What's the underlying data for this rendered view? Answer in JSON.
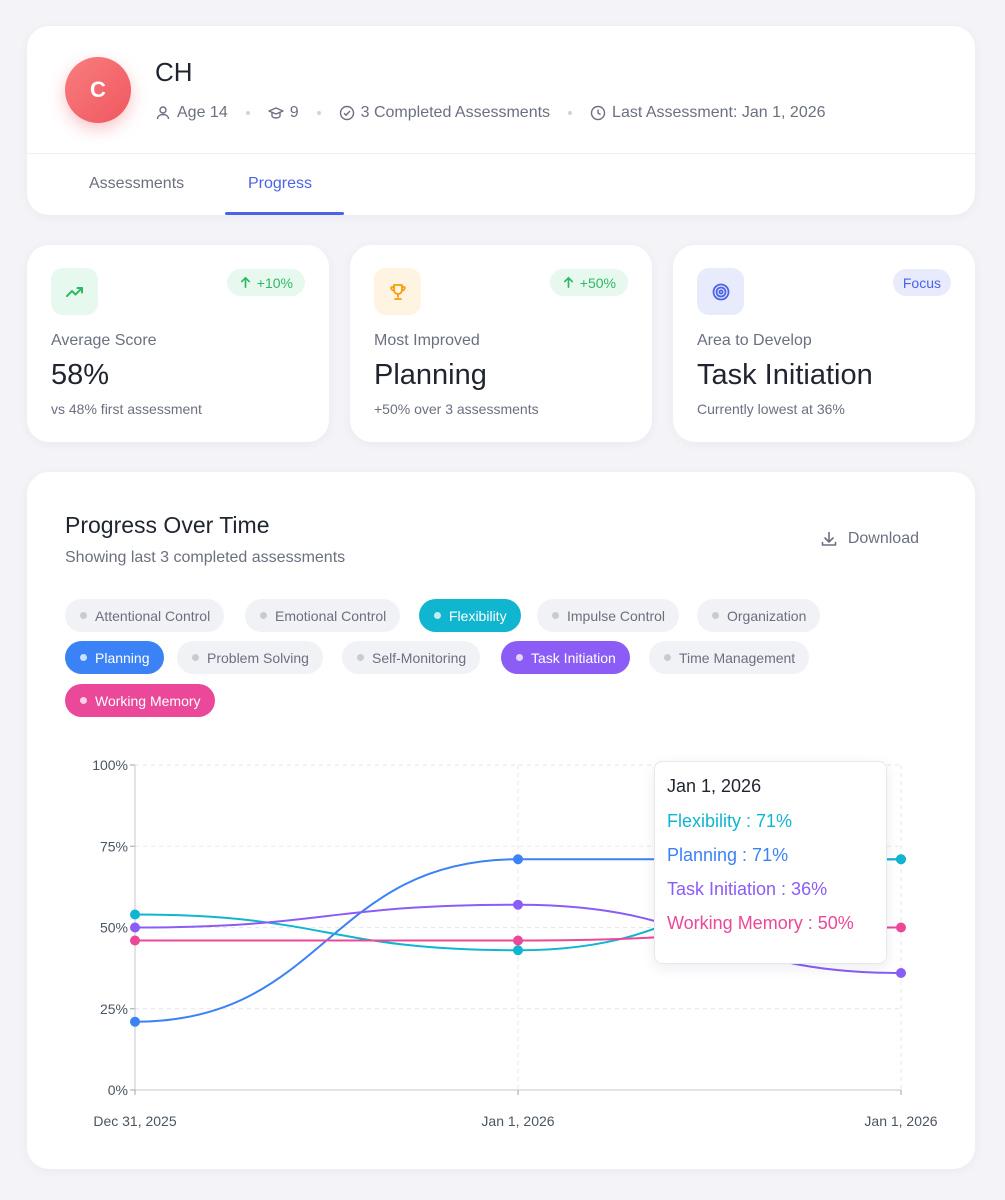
{
  "profile": {
    "initial": "C",
    "name": "CH",
    "age": "Age 14",
    "grade": "9",
    "completed": "3 Completed Assessments",
    "last_assessment": "Last Assessment: Jan 1, 2026"
  },
  "tabs": [
    {
      "label": "Assessments",
      "active": false
    },
    {
      "label": "Progress",
      "active": true
    }
  ],
  "stats": [
    {
      "icon": "trending-up-icon",
      "badge": "+10%",
      "label": "Average Score",
      "value": "58%",
      "sub": "vs 48% first assessment"
    },
    {
      "icon": "trophy-icon",
      "badge": "+50%",
      "label": "Most Improved",
      "value": "Planning",
      "sub": "+50% over 3 assessments"
    },
    {
      "icon": "target-icon",
      "badge": "Focus",
      "label": "Area to Develop",
      "value": "Task Initiation",
      "sub": "Currently lowest at 36%"
    }
  ],
  "progress": {
    "title": "Progress Over Time",
    "subtitle": "Showing last 3 completed assessments",
    "download_label": "Download"
  },
  "chips": [
    {
      "label": "Attentional Control",
      "active": false,
      "color": "#c8cbd3"
    },
    {
      "label": "Emotional Control",
      "active": false,
      "color": "#c8cbd3"
    },
    {
      "label": "Flexibility",
      "active": true,
      "color": "#10b5cf"
    },
    {
      "label": "Impulse Control",
      "active": false,
      "color": "#c8cbd3"
    },
    {
      "label": "Organization",
      "active": false,
      "color": "#c8cbd3"
    },
    {
      "label": "Planning",
      "active": true,
      "color": "#3b82f6"
    },
    {
      "label": "Problem Solving",
      "active": false,
      "color": "#c8cbd3"
    },
    {
      "label": "Self-Monitoring",
      "active": false,
      "color": "#c8cbd3"
    },
    {
      "label": "Task Initiation",
      "active": true,
      "color": "#8b5cf6"
    },
    {
      "label": "Time Management",
      "active": false,
      "color": "#c8cbd3"
    },
    {
      "label": "Working Memory",
      "active": true,
      "color": "#ec4899"
    }
  ],
  "chart_data": {
    "type": "line",
    "title": "",
    "x": [
      "Dec 31, 2025",
      "Jan 1, 2026",
      "Jan 1, 2026"
    ],
    "ylim": [
      0,
      100
    ],
    "y_ticks": [
      "0%",
      "25%",
      "50%",
      "75%",
      "100%"
    ],
    "grid": true,
    "series": [
      {
        "name": "Planning",
        "color": "#3b82f6",
        "values": [
          21,
          71,
          71
        ]
      },
      {
        "name": "Flexibility",
        "color": "#10b5cf",
        "values": [
          54,
          43,
          71
        ]
      },
      {
        "name": "Task Initiation",
        "color": "#8b5cf6",
        "values": [
          50,
          57,
          36
        ]
      },
      {
        "name": "Working Memory",
        "color": "#ec4899",
        "values": [
          46,
          46,
          50
        ]
      }
    ]
  },
  "tooltip": {
    "title": "Jan 1, 2026",
    "rows": [
      {
        "text": "Flexibility : 71%",
        "color": "#10b5cf"
      },
      {
        "text": "Planning : 71%",
        "color": "#3b82f6"
      },
      {
        "text": "Task Initiation : 36%",
        "color": "#8b5cf6"
      },
      {
        "text": "Working Memory : 50%",
        "color": "#ec4899"
      }
    ]
  }
}
